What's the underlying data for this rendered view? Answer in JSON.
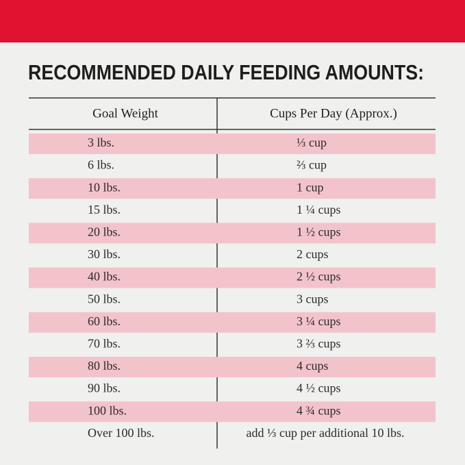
{
  "title": "RECOMMENDED DAILY FEEDING AMOUNTS:",
  "table": {
    "headers": [
      "Goal Weight",
      "Cups Per Day (Approx.)"
    ],
    "rows": [
      [
        "3 lbs.",
        "⅓ cup"
      ],
      [
        "6 lbs.",
        "⅔ cup"
      ],
      [
        "10 lbs.",
        "1 cup"
      ],
      [
        "15 lbs.",
        "1 ¼ cups"
      ],
      [
        "20 lbs.",
        "1 ½ cups"
      ],
      [
        "30 lbs.",
        "2 cups"
      ],
      [
        "40 lbs.",
        "2 ½ cups"
      ],
      [
        "50 lbs.",
        "3 cups"
      ],
      [
        "60 lbs.",
        "3 ¼ cups"
      ],
      [
        "70 lbs.",
        "3 ⅔ cups"
      ],
      [
        "80 lbs.",
        "4 cups"
      ],
      [
        "90 lbs.",
        "4 ½ cups"
      ],
      [
        "100 lbs.",
        "4 ¾ cups"
      ],
      [
        "Over 100 lbs.",
        "add ⅓ cup per additional 10 lbs."
      ]
    ]
  }
}
